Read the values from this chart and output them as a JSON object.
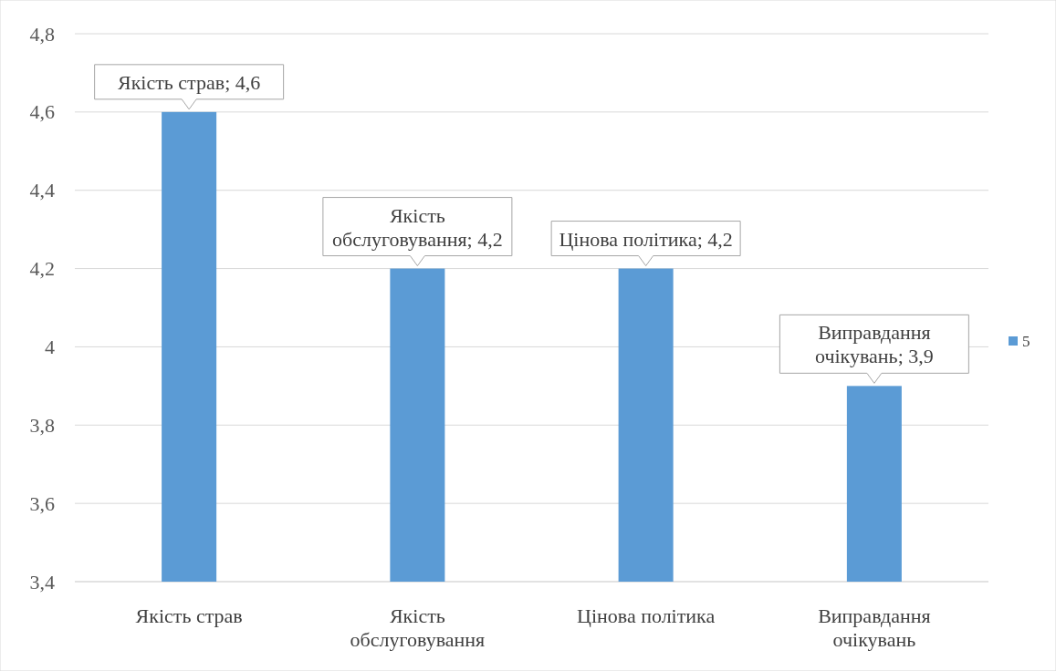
{
  "chart_data": {
    "type": "bar",
    "categories": [
      "Якість страв",
      "Якість обслуговування",
      "Цінова політика",
      "Виправдання очікувань"
    ],
    "series": [
      {
        "name": "5",
        "color": "#5b9bd5",
        "values": [
          4.6,
          4.2,
          4.2,
          3.9
        ],
        "value_labels": [
          "Якість страв; 4,6",
          "Якість обслуговування; 4,2",
          "Цінова політика; 4,2",
          "Виправдання очікувань; 3,9"
        ]
      }
    ],
    "ylim": [
      3.4,
      4.8
    ],
    "yticks": [
      {
        "value": 3.4,
        "label": "3,4"
      },
      {
        "value": 3.6,
        "label": "3,6"
      },
      {
        "value": 3.8,
        "label": "3,8"
      },
      {
        "value": 4,
        "label": "4"
      },
      {
        "value": 4.2,
        "label": "4,2"
      },
      {
        "value": 4.4,
        "label": "4,4"
      },
      {
        "value": 4.6,
        "label": "4,6"
      },
      {
        "value": 4.8,
        "label": "4,8"
      }
    ],
    "grid": "y",
    "legend": "right"
  }
}
